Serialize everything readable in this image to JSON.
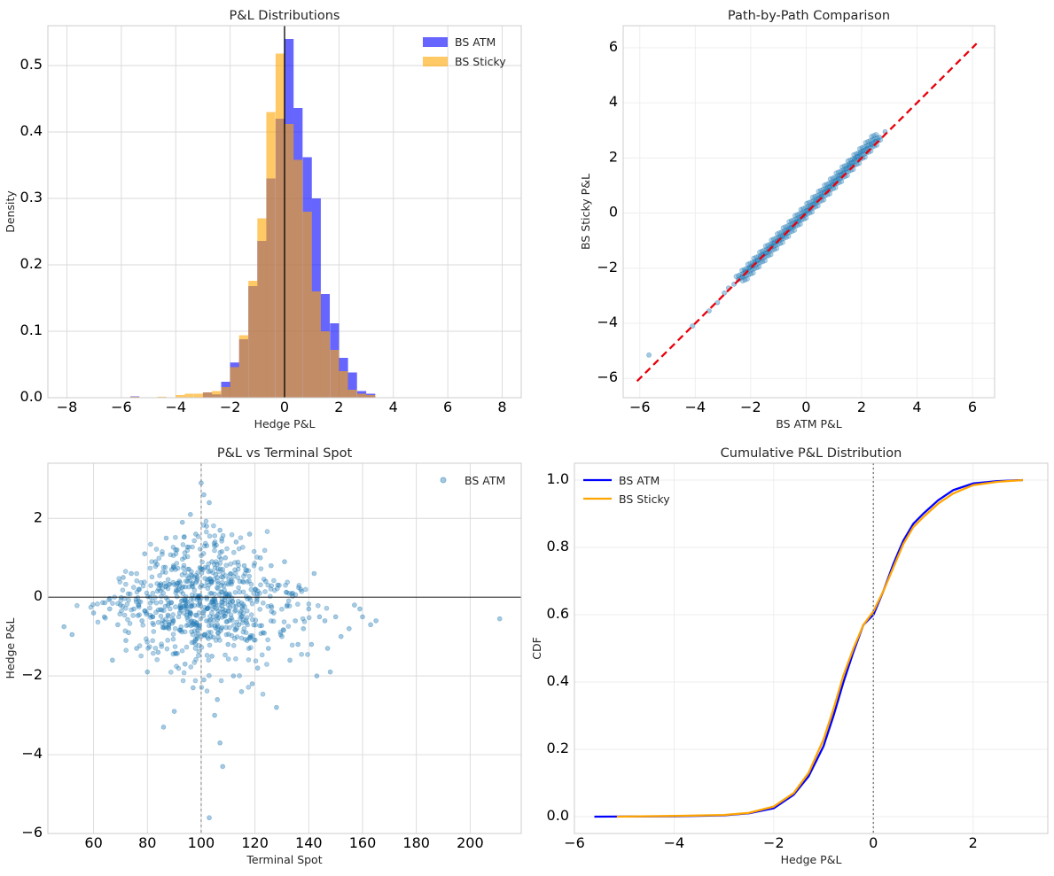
{
  "chart_data": [
    {
      "panel": "top-left",
      "type": "histogram",
      "title": "P&L Distributions",
      "xlabel": "Hedge P&L",
      "ylabel": "Density",
      "xlim": [
        -8.7,
        8.7
      ],
      "ylim": [
        0,
        0.56
      ],
      "xticks": [
        -8,
        -6,
        -4,
        -2,
        0,
        2,
        4,
        6,
        8
      ],
      "yticks": [
        0.0,
        0.1,
        0.2,
        0.3,
        0.4,
        0.5
      ],
      "xtick_labels": [
        "−8",
        "−6",
        "−4",
        "−2",
        "0",
        "2",
        "4",
        "6",
        "8"
      ],
      "ytick_labels": [
        "0.0",
        "0.1",
        "0.2",
        "0.3",
        "0.4",
        "0.5"
      ],
      "vline": 0,
      "bin_width": 0.333,
      "legend_location": "top-right",
      "series": [
        {
          "name": "BS ATM",
          "color": "#0000ff",
          "bins": [
            [
              -5.67,
              0.002
            ],
            [
              -3.0,
              0.008
            ],
            [
              -2.67,
              0.005
            ],
            [
              -2.33,
              0.024
            ],
            [
              -2.0,
              0.053
            ],
            [
              -1.67,
              0.088
            ],
            [
              -1.33,
              0.168
            ],
            [
              -1.0,
              0.236
            ],
            [
              -0.67,
              0.33
            ],
            [
              -0.33,
              0.42
            ],
            [
              0.0,
              0.54
            ],
            [
              0.33,
              0.436
            ],
            [
              0.67,
              0.362
            ],
            [
              1.0,
              0.3
            ],
            [
              1.33,
              0.156
            ],
            [
              1.67,
              0.112
            ],
            [
              2.0,
              0.06
            ],
            [
              2.33,
              0.038
            ],
            [
              2.67,
              0.01
            ],
            [
              3.0,
              0.006
            ]
          ]
        },
        {
          "name": "BS Sticky",
          "color": "#ffa500",
          "bins": [
            [
              -5.67,
              0.0015
            ],
            [
              -4.67,
              0.0015
            ],
            [
              -4.0,
              0.004
            ],
            [
              -3.67,
              0.006
            ],
            [
              -3.33,
              0.006
            ],
            [
              -3.0,
              0.008
            ],
            [
              -2.67,
              0.01
            ],
            [
              -2.33,
              0.016
            ],
            [
              -2.0,
              0.046
            ],
            [
              -1.67,
              0.094
            ],
            [
              -1.33,
              0.176
            ],
            [
              -1.0,
              0.27
            ],
            [
              -0.67,
              0.43
            ],
            [
              -0.33,
              0.518
            ],
            [
              0.0,
              0.412
            ],
            [
              0.33,
              0.358
            ],
            [
              0.67,
              0.28
            ],
            [
              1.0,
              0.16
            ],
            [
              1.33,
              0.1
            ],
            [
              1.67,
              0.072
            ],
            [
              2.0,
              0.04
            ],
            [
              2.33,
              0.012
            ],
            [
              2.67,
              0.006
            ],
            [
              3.0,
              0.004
            ]
          ]
        }
      ]
    },
    {
      "panel": "top-right",
      "type": "scatter",
      "title": "Path-by-Path Comparison",
      "xlabel": "BS ATM P&L",
      "ylabel": "BS Sticky P&L",
      "xlim": [
        -6.6,
        6.8
      ],
      "ylim": [
        -6.7,
        6.8
      ],
      "xticks": [
        -6,
        -4,
        -2,
        0,
        2,
        4,
        6
      ],
      "yticks": [
        -6,
        -4,
        -2,
        0,
        2,
        4,
        6
      ],
      "xtick_labels": [
        "−6",
        "−4",
        "−2",
        "0",
        "2",
        "4",
        "6"
      ],
      "ytick_labels": [
        "−6",
        "−4",
        "−2",
        "0",
        "2",
        "4",
        "6"
      ],
      "point_color": "#1f77b4",
      "reference_line": {
        "from": [
          -6.1,
          -6.1
        ],
        "to": [
          6.15,
          6.15
        ],
        "color": "#e8000b",
        "style": "dashed"
      },
      "points": [
        [
          -5.67,
          -5.15
        ],
        [
          -4.1,
          -4.1
        ],
        [
          -3.5,
          -3.55
        ],
        [
          -3.2,
          -3.25
        ],
        [
          -2.95,
          -2.9
        ],
        [
          -2.8,
          -2.72
        ],
        [
          -2.6,
          -2.58
        ],
        [
          -2.45,
          -2.42
        ],
        [
          -2.3,
          -2.3
        ],
        [
          -2.2,
          -2.12
        ],
        [
          -2.05,
          -2.0
        ],
        [
          -1.95,
          -1.92
        ],
        [
          -1.85,
          -1.8
        ],
        [
          -1.75,
          -1.72
        ],
        [
          -1.65,
          -1.6
        ],
        [
          -1.55,
          -1.52
        ],
        [
          -1.45,
          -1.45
        ],
        [
          -1.35,
          -1.33
        ],
        [
          -1.25,
          -1.2
        ],
        [
          -1.15,
          -1.1
        ],
        [
          -1.05,
          -1.02
        ],
        [
          -0.95,
          -0.92
        ],
        [
          -0.85,
          -0.85
        ],
        [
          -0.75,
          -0.72
        ],
        [
          -0.65,
          -0.62
        ],
        [
          -0.55,
          -0.52
        ],
        [
          -0.45,
          -0.45
        ],
        [
          -0.35,
          -0.32
        ],
        [
          -0.25,
          -0.22
        ],
        [
          -0.15,
          -0.12
        ],
        [
          -0.05,
          -0.02
        ],
        [
          0.05,
          0.1
        ],
        [
          0.15,
          0.2
        ],
        [
          0.25,
          0.3
        ],
        [
          0.35,
          0.42
        ],
        [
          0.45,
          0.52
        ],
        [
          0.55,
          0.62
        ],
        [
          0.65,
          0.75
        ],
        [
          0.75,
          0.85
        ],
        [
          0.85,
          0.95
        ],
        [
          0.95,
          1.05
        ],
        [
          1.05,
          1.15
        ],
        [
          1.15,
          1.26
        ],
        [
          1.25,
          1.38
        ],
        [
          1.35,
          1.48
        ],
        [
          1.45,
          1.6
        ],
        [
          1.55,
          1.72
        ],
        [
          1.65,
          1.82
        ],
        [
          1.75,
          1.95
        ],
        [
          1.85,
          2.05
        ],
        [
          1.95,
          2.15
        ],
        [
          2.05,
          2.25
        ],
        [
          2.2,
          2.35
        ],
        [
          2.35,
          2.48
        ],
        [
          2.5,
          2.6
        ],
        [
          2.65,
          2.75
        ],
        [
          2.85,
          2.95
        ]
      ]
    },
    {
      "panel": "bottom-left",
      "type": "scatter",
      "title": "P&L vs Terminal Spot",
      "xlabel": "Terminal Spot",
      "ylabel": "Hedge P&L",
      "xlim": [
        43,
        219
      ],
      "ylim": [
        -6.0,
        3.4
      ],
      "xticks": [
        60,
        80,
        100,
        120,
        140,
        160,
        180,
        200
      ],
      "yticks": [
        -6,
        -4,
        -2,
        0,
        2
      ],
      "xtick_labels": [
        "60",
        "80",
        "100",
        "120",
        "140",
        "160",
        "180",
        "200"
      ],
      "ytick_labels": [
        "−6",
        "−4",
        "−2",
        "0",
        "2"
      ],
      "hline": 0,
      "vline": 100,
      "legend": "BS ATM",
      "legend_location": "top-right",
      "point_color": "#1f77b4",
      "points": [
        [
          49,
          -0.75
        ],
        [
          52,
          -0.95
        ],
        [
          60,
          -0.4
        ],
        [
          64,
          -0.5
        ],
        [
          66,
          -0.3
        ],
        [
          67,
          -1.6
        ],
        [
          69,
          -0.7
        ],
        [
          70,
          -0.2
        ],
        [
          71,
          0.5
        ],
        [
          72,
          -1.1
        ],
        [
          73,
          -0.9
        ],
        [
          74,
          0.6
        ],
        [
          75,
          -0.3
        ],
        [
          76,
          -1.3
        ],
        [
          77,
          0.2
        ],
        [
          78,
          -0.6
        ],
        [
          79,
          1.1
        ],
        [
          80,
          -1.9
        ],
        [
          81,
          0.0
        ],
        [
          82,
          -0.5
        ],
        [
          83,
          0.9
        ],
        [
          84,
          -1.4
        ],
        [
          85,
          0.3
        ],
        [
          86,
          -3.3
        ],
        [
          87,
          1.5
        ],
        [
          88,
          -0.8
        ],
        [
          89,
          0.7
        ],
        [
          90,
          -2.9
        ],
        [
          91,
          1.2
        ],
        [
          92,
          -0.4
        ],
        [
          93,
          1.9
        ],
        [
          94,
          -1.7
        ],
        [
          95,
          0.4
        ],
        [
          96,
          2.1
        ],
        [
          97,
          -2.3
        ],
        [
          98,
          1.6
        ],
        [
          99,
          -0.2
        ],
        [
          100,
          2.9
        ],
        [
          100,
          -1.0
        ],
        [
          101,
          2.6
        ],
        [
          101,
          -2.1
        ],
        [
          102,
          1.8
        ],
        [
          102,
          -0.6
        ],
        [
          103,
          2.4
        ],
        [
          103,
          -5.6
        ],
        [
          104,
          0.9
        ],
        [
          104,
          -1.5
        ],
        [
          105,
          1.3
        ],
        [
          105,
          -3.0
        ],
        [
          106,
          0.5
        ],
        [
          106,
          -2.6
        ],
        [
          107,
          1.7
        ],
        [
          107,
          -3.7
        ],
        [
          108,
          -0.3
        ],
        [
          108,
          -4.3
        ],
        [
          109,
          1.0
        ],
        [
          110,
          -1.2
        ],
        [
          111,
          0.6
        ],
        [
          112,
          -2.0
        ],
        [
          113,
          1.4
        ],
        [
          114,
          -0.7
        ],
        [
          115,
          -2.4
        ],
        [
          116,
          0.8
        ],
        [
          117,
          -1.1
        ],
        [
          118,
          1.6
        ],
        [
          119,
          -2.2
        ],
        [
          120,
          0.2
        ],
        [
          121,
          -1.8
        ],
        [
          122,
          1.0
        ],
        [
          123,
          -0.9
        ],
        [
          124,
          0.4
        ],
        [
          125,
          -1.3
        ],
        [
          126,
          0.8
        ],
        [
          127,
          -0.4
        ],
        [
          128,
          -2.8
        ],
        [
          129,
          0.3
        ],
        [
          130,
          -1.0
        ],
        [
          131,
          0.9
        ],
        [
          132,
          -0.2
        ],
        [
          133,
          -1.6
        ],
        [
          134,
          0.1
        ],
        [
          135,
          -0.6
        ],
        [
          136,
          -1.2
        ],
        [
          137,
          0.2
        ],
        [
          138,
          -0.8
        ],
        [
          140,
          -0.3
        ],
        [
          141,
          -1.2
        ],
        [
          142,
          0.6
        ],
        [
          143,
          -2.0
        ],
        [
          144,
          -0.5
        ],
        [
          146,
          -0.6
        ],
        [
          147,
          -1.3
        ],
        [
          148,
          -1.9
        ],
        [
          150,
          -0.5
        ],
        [
          152,
          -1.0
        ],
        [
          155,
          -0.8
        ],
        [
          157,
          -0.2
        ],
        [
          159,
          -0.3
        ],
        [
          160,
          -0.5
        ],
        [
          163,
          -0.7
        ],
        [
          165,
          -0.6
        ],
        [
          211,
          -0.55
        ]
      ]
    },
    {
      "panel": "bottom-right",
      "type": "line",
      "title": "Cumulative P&L Distribution",
      "xlabel": "Hedge P&L",
      "ylabel": "CDF",
      "xlim": [
        -6.0,
        3.5
      ],
      "ylim": [
        -0.05,
        1.05
      ],
      "xticks": [
        -6,
        -4,
        -2,
        0,
        2
      ],
      "yticks": [
        0.0,
        0.2,
        0.4,
        0.6,
        0.8,
        1.0
      ],
      "xtick_labels": [
        "−6",
        "−4",
        "−2",
        "0",
        "2"
      ],
      "ytick_labels": [
        "0.0",
        "0.2",
        "0.4",
        "0.6",
        "0.8",
        "1.0"
      ],
      "vline": 0,
      "legend_location": "top-left",
      "series": [
        {
          "name": "BS ATM",
          "color": "#0000ff",
          "points": [
            [
              -5.6,
              0.0
            ],
            [
              -4.0,
              0.001
            ],
            [
              -3.0,
              0.004
            ],
            [
              -2.5,
              0.01
            ],
            [
              -2.0,
              0.025
            ],
            [
              -1.6,
              0.065
            ],
            [
              -1.3,
              0.12
            ],
            [
              -1.0,
              0.21
            ],
            [
              -0.8,
              0.3
            ],
            [
              -0.6,
              0.4
            ],
            [
              -0.4,
              0.49
            ],
            [
              -0.2,
              0.57
            ],
            [
              0.0,
              0.6
            ],
            [
              0.2,
              0.67
            ],
            [
              0.4,
              0.75
            ],
            [
              0.6,
              0.82
            ],
            [
              0.8,
              0.87
            ],
            [
              1.0,
              0.9
            ],
            [
              1.3,
              0.94
            ],
            [
              1.6,
              0.97
            ],
            [
              2.0,
              0.99
            ],
            [
              2.5,
              0.997
            ],
            [
              3.0,
              1.0
            ]
          ]
        },
        {
          "name": "BS Sticky",
          "color": "#ffa500",
          "points": [
            [
              -5.15,
              0.0
            ],
            [
              -4.0,
              0.002
            ],
            [
              -3.0,
              0.005
            ],
            [
              -2.5,
              0.011
            ],
            [
              -2.0,
              0.03
            ],
            [
              -1.6,
              0.07
            ],
            [
              -1.3,
              0.13
            ],
            [
              -1.0,
              0.23
            ],
            [
              -0.8,
              0.32
            ],
            [
              -0.6,
              0.42
            ],
            [
              -0.4,
              0.5
            ],
            [
              -0.2,
              0.57
            ],
            [
              0.0,
              0.61
            ],
            [
              0.2,
              0.67
            ],
            [
              0.4,
              0.74
            ],
            [
              0.6,
              0.81
            ],
            [
              0.8,
              0.86
            ],
            [
              1.0,
              0.89
            ],
            [
              1.3,
              0.93
            ],
            [
              1.6,
              0.96
            ],
            [
              2.0,
              0.985
            ],
            [
              2.5,
              0.995
            ],
            [
              3.0,
              1.0
            ]
          ]
        }
      ]
    }
  ]
}
